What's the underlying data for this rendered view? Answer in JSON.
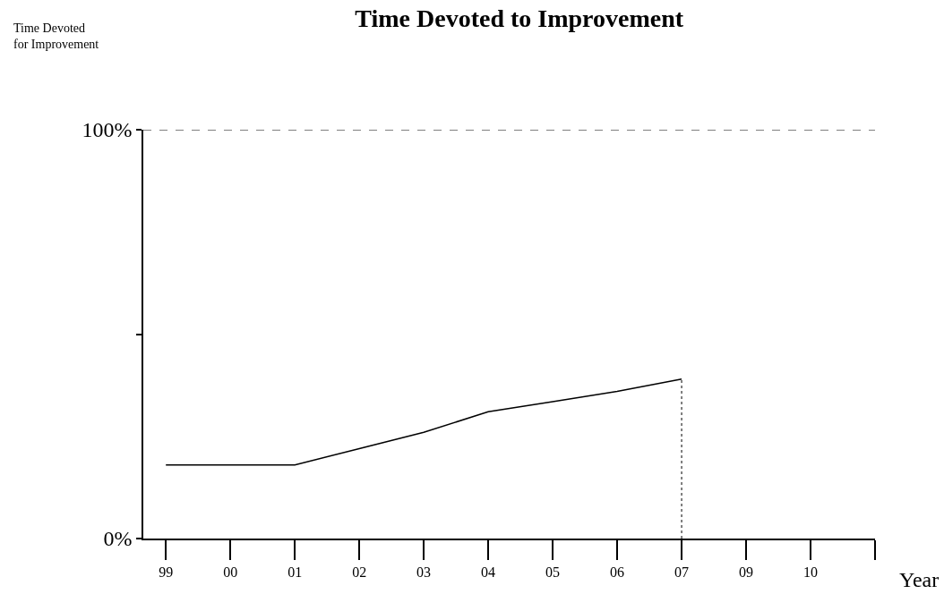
{
  "chart_data": {
    "type": "line",
    "title": "Time Devoted to Improvement",
    "annotations": [
      "Time Devoted\nfor Improvement"
    ],
    "xlabel": "Year",
    "categories": [
      "99",
      "00",
      "01",
      "02",
      "03",
      "04",
      "05",
      "06",
      "07",
      "09",
      "10",
      null
    ],
    "series": [
      {
        "color": "#000000",
        "values": [
          18,
          18,
          18,
          22,
          26,
          31,
          33.5,
          36,
          39,
          null,
          null,
          null
        ]
      }
    ],
    "ylim": [
      0,
      100
    ],
    "yticks": [
      {
        "value": 0,
        "label": "0%"
      },
      {
        "value": 50,
        "label": null
      },
      {
        "value": 100,
        "label": "100%"
      }
    ],
    "ref_lines": [
      {
        "axis": "y",
        "value": 100,
        "line_style": "dashed",
        "color": "#000000"
      },
      {
        "axis": "x",
        "value": "07",
        "line_style": "dotted",
        "color": "#000000"
      }
    ],
    "grid": false,
    "marker": "none",
    "line_style": "solid"
  }
}
